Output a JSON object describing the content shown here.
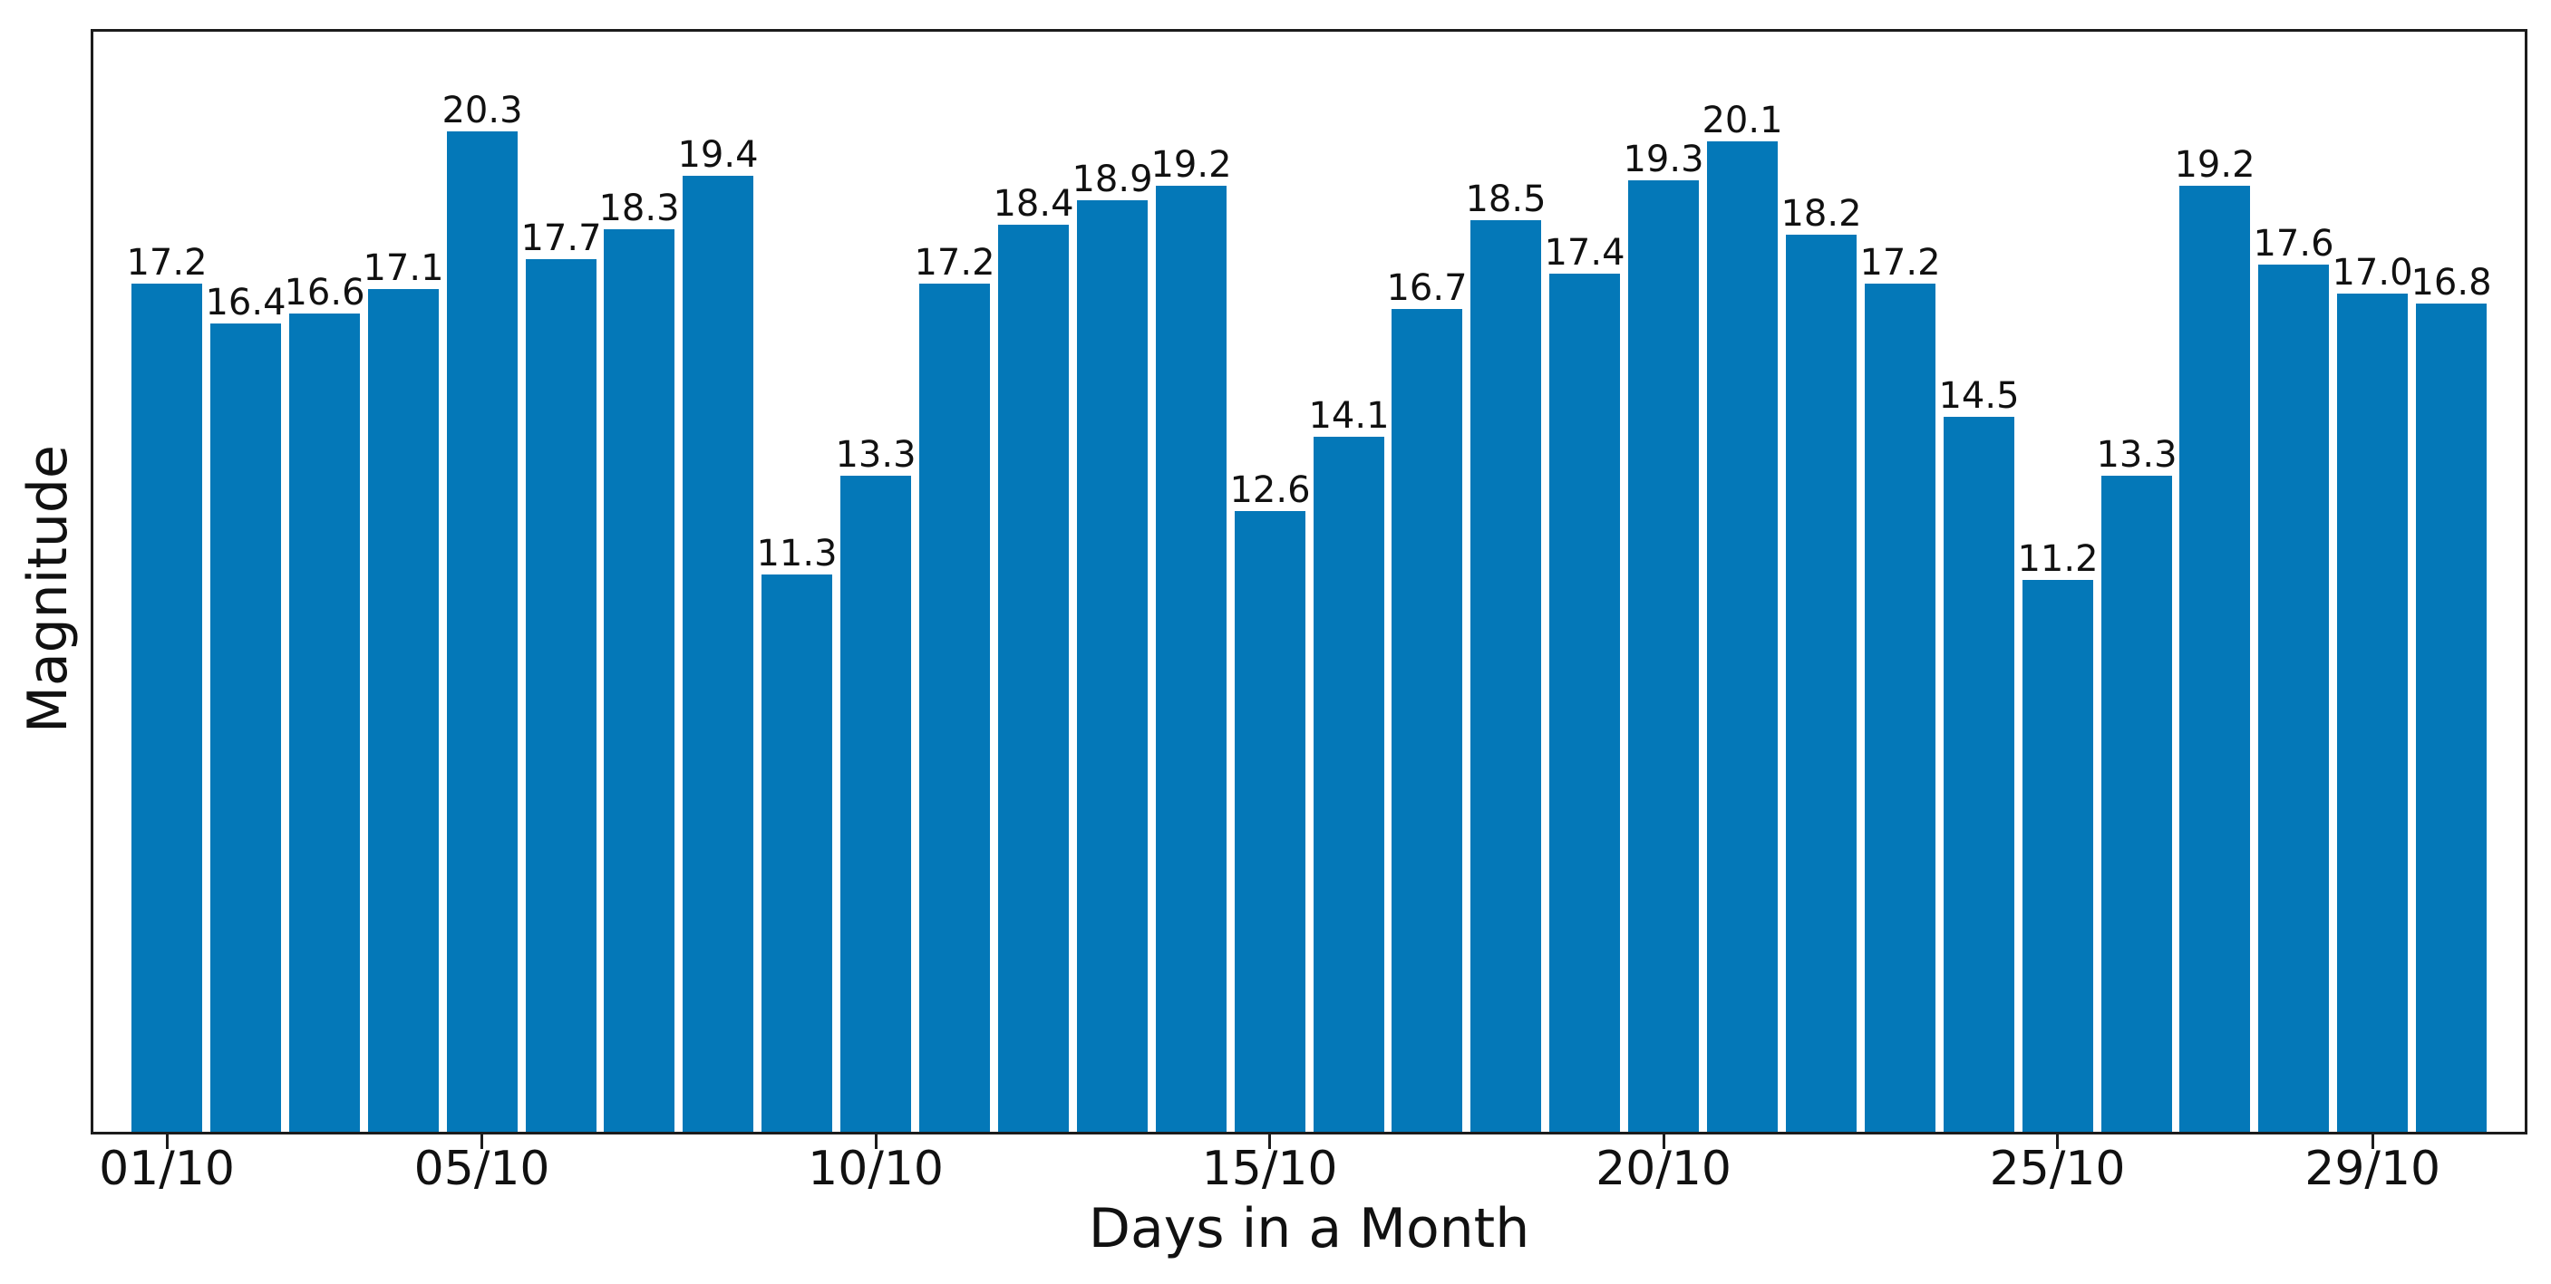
{
  "figure": {
    "background_color": "#ffffff",
    "bar_color": "#0478b8",
    "text_color": "#111111",
    "axis_color": "#1c1c1c"
  },
  "chart_data": {
    "type": "bar",
    "title": "",
    "xlabel": "Days in a Month",
    "ylabel": "Magnitude",
    "values": [
      17.2,
      16.4,
      16.6,
      17.1,
      20.3,
      17.7,
      18.3,
      19.4,
      11.3,
      13.3,
      17.2,
      18.4,
      18.9,
      19.2,
      12.6,
      14.1,
      16.7,
      18.5,
      17.4,
      19.3,
      20.1,
      18.2,
      17.2,
      14.5,
      11.2,
      13.3,
      19.2,
      17.6,
      17.0,
      16.8
    ],
    "bar_value_labels": [
      "17.2",
      "16.4",
      "16.6",
      "17.1",
      "20.3",
      "17.7",
      "18.3",
      "19.4",
      "11.3",
      "13.3",
      "17.2",
      "18.4",
      "18.9",
      "19.2",
      "12.6",
      "14.1",
      "16.7",
      "18.5",
      "17.4",
      "19.3",
      "20.1",
      "18.2",
      "17.2",
      "14.5",
      "11.2",
      "13.3",
      "19.2",
      "17.6",
      "17.0",
      "16.8"
    ],
    "x_ticks": {
      "indices": [
        0,
        4,
        9,
        14,
        19,
        24,
        28
      ],
      "labels": [
        "01/10",
        "05/10",
        "10/10",
        "15/10",
        "20/10",
        "25/10",
        "29/10"
      ]
    },
    "y_ticks": [],
    "ylim": [
      0,
      22.3
    ],
    "grid": false,
    "legend": null
  }
}
